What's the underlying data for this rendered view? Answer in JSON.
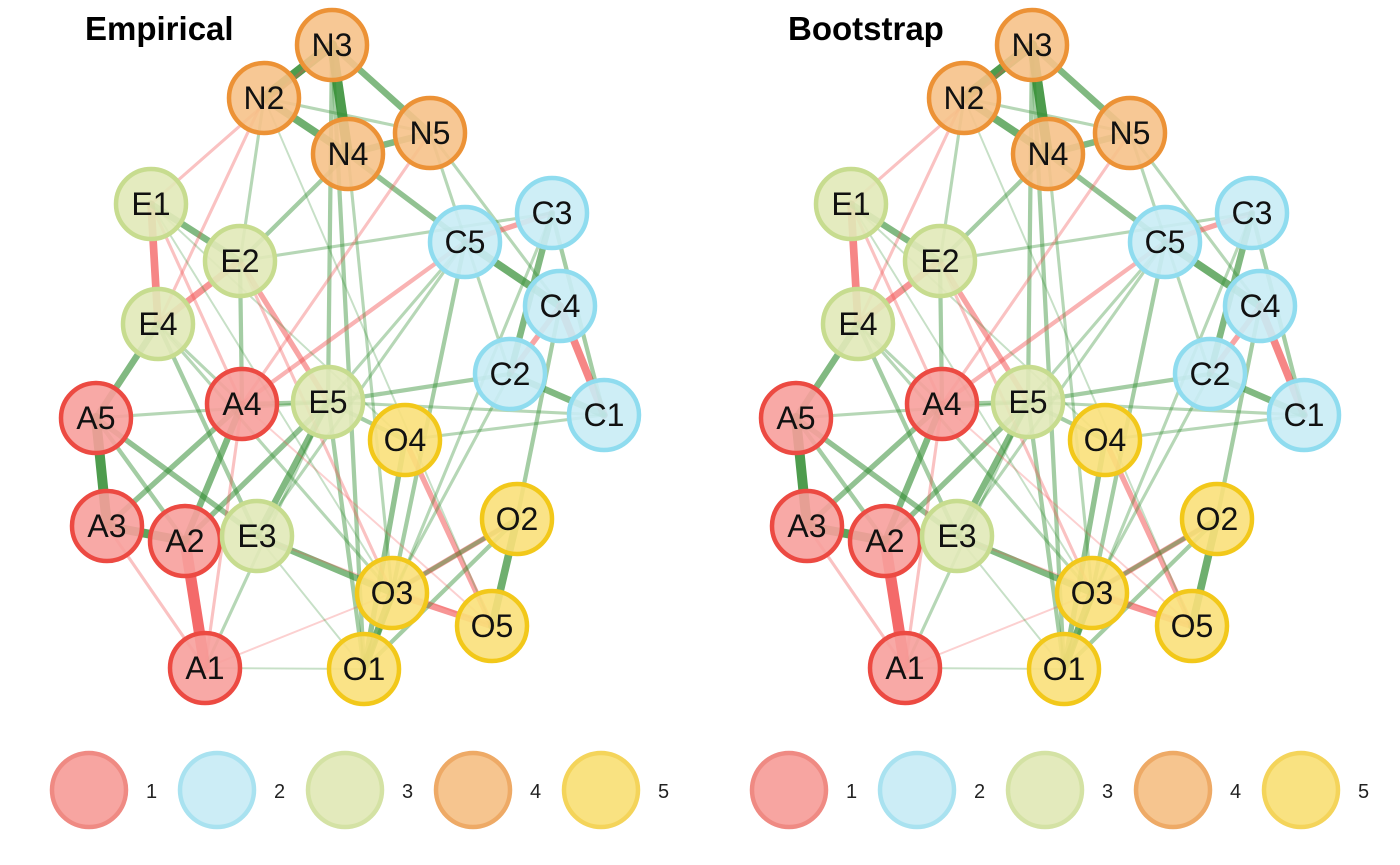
{
  "panels": [
    {
      "title": "Empirical"
    },
    {
      "title": "Bootstrap"
    }
  ],
  "groups": [
    {
      "label": "1",
      "fill": "#f7a09c",
      "stroke": "#ec4a42",
      "legend_stroke": "#ef8a83"
    },
    {
      "label": "2",
      "fill": "#c9ecf5",
      "stroke": "#8fdcef",
      "legend_stroke": "#a9e2f0"
    },
    {
      "label": "3",
      "fill": "#e1e9b8",
      "stroke": "#c7dc8f",
      "legend_stroke": "#d4e2a4"
    },
    {
      "label": "4",
      "fill": "#f6c289",
      "stroke": "#ec9236",
      "legend_stroke": "#eeaa66"
    },
    {
      "label": "5",
      "fill": "#f9e07a",
      "stroke": "#f2c81a",
      "legend_stroke": "#f4d45a"
    }
  ],
  "edge_colors": {
    "positive": "#2e8b2e",
    "negative": "#f25050"
  },
  "nodes": [
    {
      "id": "A1",
      "group": 0
    },
    {
      "id": "A2",
      "group": 0
    },
    {
      "id": "A3",
      "group": 0
    },
    {
      "id": "A4",
      "group": 0
    },
    {
      "id": "A5",
      "group": 0
    },
    {
      "id": "C1",
      "group": 1
    },
    {
      "id": "C2",
      "group": 1
    },
    {
      "id": "C3",
      "group": 1
    },
    {
      "id": "C4",
      "group": 1
    },
    {
      "id": "C5",
      "group": 1
    },
    {
      "id": "E1",
      "group": 2
    },
    {
      "id": "E2",
      "group": 2
    },
    {
      "id": "E3",
      "group": 2
    },
    {
      "id": "E4",
      "group": 2
    },
    {
      "id": "E5",
      "group": 2
    },
    {
      "id": "N2",
      "group": 3
    },
    {
      "id": "N3",
      "group": 3
    },
    {
      "id": "N4",
      "group": 3
    },
    {
      "id": "N5",
      "group": 3
    },
    {
      "id": "O1",
      "group": 4
    },
    {
      "id": "O2",
      "group": 4
    },
    {
      "id": "O3",
      "group": 4
    },
    {
      "id": "O4",
      "group": 4
    },
    {
      "id": "O5",
      "group": 4
    }
  ],
  "edges": [
    {
      "from": "A2",
      "to": "A1",
      "weight": 9,
      "sign": "neg"
    },
    {
      "from": "A3",
      "to": "A5",
      "weight": 8,
      "sign": "pos"
    },
    {
      "from": "A3",
      "to": "A2",
      "weight": 7,
      "sign": "pos"
    },
    {
      "from": "E1",
      "to": "E4",
      "weight": 6,
      "sign": "neg"
    },
    {
      "from": "E2",
      "to": "E4",
      "weight": 5,
      "sign": "neg"
    },
    {
      "from": "E4",
      "to": "A5",
      "weight": 5,
      "sign": "pos"
    },
    {
      "from": "A2",
      "to": "A4",
      "weight": 5,
      "sign": "pos"
    },
    {
      "from": "A3",
      "to": "A4",
      "weight": 4,
      "sign": "pos"
    },
    {
      "from": "A5",
      "to": "E3",
      "weight": 4,
      "sign": "pos"
    },
    {
      "from": "A2",
      "to": "E5",
      "weight": 4,
      "sign": "pos"
    },
    {
      "from": "E3",
      "to": "E5",
      "weight": 5,
      "sign": "pos"
    },
    {
      "from": "E1",
      "to": "E2",
      "weight": 5,
      "sign": "pos"
    },
    {
      "from": "E2",
      "to": "A4",
      "weight": 3,
      "sign": "pos"
    },
    {
      "from": "E2",
      "to": "E5",
      "weight": 4,
      "sign": "neg"
    },
    {
      "from": "E4",
      "to": "E3",
      "weight": 3,
      "sign": "pos"
    },
    {
      "from": "A4",
      "to": "E5",
      "weight": 3,
      "sign": "pos"
    },
    {
      "from": "N3",
      "to": "N4",
      "weight": 8,
      "sign": "pos"
    },
    {
      "from": "N2",
      "to": "N3",
      "weight": 8,
      "sign": "pos"
    },
    {
      "from": "N2",
      "to": "N4",
      "weight": 6,
      "sign": "pos"
    },
    {
      "from": "N3",
      "to": "N5",
      "weight": 5,
      "sign": "pos"
    },
    {
      "from": "N4",
      "to": "N5",
      "weight": 5,
      "sign": "pos"
    },
    {
      "from": "N2",
      "to": "N5",
      "weight": 2,
      "sign": "pos"
    },
    {
      "from": "N4",
      "to": "C5",
      "weight": 4,
      "sign": "pos"
    },
    {
      "from": "N3",
      "to": "E5",
      "weight": 3,
      "sign": "pos"
    },
    {
      "from": "N4",
      "to": "E2",
      "weight": 3,
      "sign": "pos"
    },
    {
      "from": "N2",
      "to": "E2",
      "weight": 2,
      "sign": "pos"
    },
    {
      "from": "N2",
      "to": "E4",
      "weight": 2,
      "sign": "neg"
    },
    {
      "from": "N3",
      "to": "O1",
      "weight": 3,
      "sign": "pos"
    },
    {
      "from": "N5",
      "to": "C2",
      "weight": 2,
      "sign": "pos"
    },
    {
      "from": "N5",
      "to": "C4",
      "weight": 2,
      "sign": "pos"
    },
    {
      "from": "C5",
      "to": "C4",
      "weight": 6,
      "sign": "pos"
    },
    {
      "from": "C4",
      "to": "C1",
      "weight": 6,
      "sign": "neg"
    },
    {
      "from": "C2",
      "to": "C1",
      "weight": 5,
      "sign": "pos"
    },
    {
      "from": "C3",
      "to": "C2",
      "weight": 5,
      "sign": "pos"
    },
    {
      "from": "C3",
      "to": "C5",
      "weight": 4,
      "sign": "neg"
    },
    {
      "from": "C3",
      "to": "C1",
      "weight": 3,
      "sign": "pos"
    },
    {
      "from": "C4",
      "to": "C2",
      "weight": 4,
      "sign": "neg"
    },
    {
      "from": "C5",
      "to": "A4",
      "weight": 3,
      "sign": "neg"
    },
    {
      "from": "C5",
      "to": "O3",
      "weight": 3,
      "sign": "pos"
    },
    {
      "from": "C2",
      "to": "E5",
      "weight": 3,
      "sign": "pos"
    },
    {
      "from": "C4",
      "to": "O2",
      "weight": 3,
      "sign": "pos"
    },
    {
      "from": "C5",
      "to": "E3",
      "weight": 2,
      "sign": "pos"
    },
    {
      "from": "O3",
      "to": "O5",
      "weight": 5,
      "sign": "neg"
    },
    {
      "from": "O3",
      "to": "O2",
      "weight": 4,
      "sign": "neg"
    },
    {
      "from": "O2",
      "to": "O5",
      "weight": 6,
      "sign": "pos"
    },
    {
      "from": "O1",
      "to": "O3",
      "weight": 6,
      "sign": "pos"
    },
    {
      "from": "O4",
      "to": "O5",
      "weight": 4,
      "sign": "neg"
    },
    {
      "from": "O4",
      "to": "O1",
      "weight": 4,
      "sign": "pos"
    },
    {
      "from": "E3",
      "to": "O3",
      "weight": 5,
      "sign": "pos"
    },
    {
      "from": "E5",
      "to": "O1",
      "weight": 3,
      "sign": "pos"
    },
    {
      "from": "E5",
      "to": "O4",
      "weight": 3,
      "sign": "pos"
    },
    {
      "from": "O2",
      "to": "O1",
      "weight": 3,
      "sign": "pos"
    },
    {
      "from": "O2",
      "to": "O3",
      "weight": 3,
      "sign": "pos"
    },
    {
      "from": "A1",
      "to": "A3",
      "weight": 2,
      "sign": "neg"
    },
    {
      "from": "A1",
      "to": "E5",
      "weight": 2,
      "sign": "pos"
    },
    {
      "from": "A1",
      "to": "O1",
      "weight": 1,
      "sign": "pos"
    },
    {
      "from": "A1",
      "to": "O3",
      "weight": 1,
      "sign": "neg"
    },
    {
      "from": "E1",
      "to": "N3",
      "weight": 2,
      "sign": "neg"
    },
    {
      "from": "E1",
      "to": "O4",
      "weight": 1,
      "sign": "pos"
    },
    {
      "from": "E1",
      "to": "A4",
      "weight": 2,
      "sign": "neg"
    },
    {
      "from": "E4",
      "to": "A4",
      "weight": 2,
      "sign": "pos"
    },
    {
      "from": "E4",
      "to": "O3",
      "weight": 2,
      "sign": "pos"
    },
    {
      "from": "E5",
      "to": "C5",
      "weight": 2,
      "sign": "pos"
    },
    {
      "from": "E5",
      "to": "C1",
      "weight": 2,
      "sign": "pos"
    },
    {
      "from": "A4",
      "to": "O5",
      "weight": 1,
      "sign": "neg"
    },
    {
      "from": "A4",
      "to": "A1",
      "weight": 2,
      "sign": "neg"
    },
    {
      "from": "A5",
      "to": "A2",
      "weight": 3,
      "sign": "pos"
    },
    {
      "from": "C1",
      "to": "O4",
      "weight": 2,
      "sign": "pos"
    },
    {
      "from": "C3",
      "to": "E2",
      "weight": 2,
      "sign": "pos"
    },
    {
      "from": "C3",
      "to": "O1",
      "weight": 2,
      "sign": "pos"
    },
    {
      "from": "N4",
      "to": "O3",
      "weight": 2,
      "sign": "pos"
    },
    {
      "from": "N5",
      "to": "A4",
      "weight": 2,
      "sign": "neg"
    },
    {
      "from": "E2",
      "to": "O3",
      "weight": 2,
      "sign": "neg"
    },
    {
      "from": "A5",
      "to": "E5",
      "weight": 2,
      "sign": "pos"
    },
    {
      "from": "E3",
      "to": "O1",
      "weight": 1,
      "sign": "pos"
    },
    {
      "from": "E1",
      "to": "O3",
      "weight": 1,
      "sign": "pos"
    },
    {
      "from": "N2",
      "to": "O5",
      "weight": 1,
      "sign": "pos"
    },
    {
      "from": "C2",
      "to": "O3",
      "weight": 2,
      "sign": "pos"
    },
    {
      "from": "E3",
      "to": "O5",
      "weight": 1,
      "sign": "neg"
    }
  ]
}
